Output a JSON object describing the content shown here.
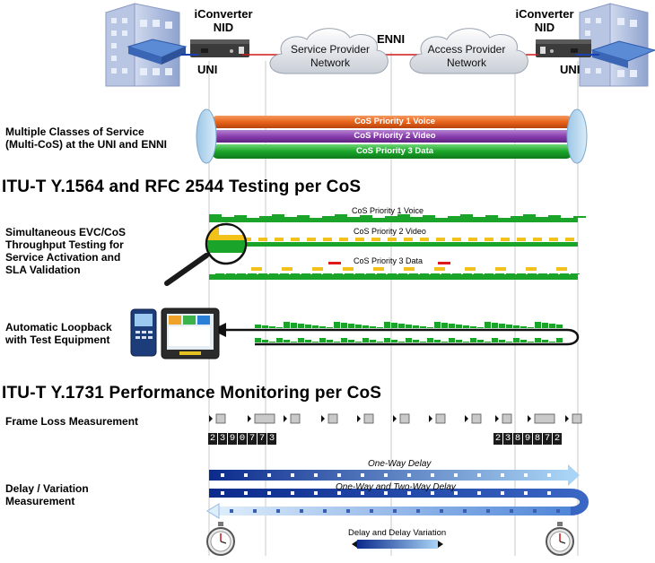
{
  "devices": {
    "left_nid": [
      "iConverter",
      "NID"
    ],
    "right_nid": [
      "iConverter",
      "NID"
    ],
    "left_uni": "UNI",
    "right_uni": "UNI",
    "enni": "ENNI"
  },
  "clouds": {
    "service_provider": [
      "Service Provider",
      "Network"
    ],
    "access_provider": [
      "Access Provider",
      "Network"
    ]
  },
  "multi_cos": {
    "label": [
      "Multiple Classes of Service",
      "(Multi-CoS) at the UNI and ENNI"
    ],
    "pipes": [
      {
        "label": "CoS Priority 1 Voice",
        "color": "#e8641c"
      },
      {
        "label": "CoS Priority 2 Video",
        "color": "#8b3fb0"
      },
      {
        "label": "CoS Priority 3 Data",
        "color": "#1aa52a"
      }
    ]
  },
  "section1": {
    "header": "ITU-T Y.1564 and RFC 2544 Testing per CoS",
    "label": [
      "Simultaneous EVC/CoS",
      "Throughput Testing for",
      "Service Activation and",
      "SLA Validation"
    ],
    "streams": [
      "CoS Priority 1 Voice",
      "CoS Priority 2 Video",
      "CoS Priority 3 Data"
    ]
  },
  "loopback": {
    "label": [
      "Automatic Loopback",
      "with Test Equipment"
    ]
  },
  "section2": {
    "header": "ITU-T Y.1731 Performance Monitoring per CoS",
    "frame_loss_label": "Frame Loss Measurement",
    "counter_left": "2390773",
    "counter_right": "2389872",
    "delay_label": [
      "Delay / Variation",
      "Measurement"
    ],
    "one_way": "One-Way Delay",
    "two_way": "One-Way and Two-Way Delay",
    "legend": "Delay and Delay Variation"
  },
  "colors": {
    "green": "#1aa52a",
    "yellow": "#f2c21a",
    "red": "#e01818",
    "blue_dark": "#0b2a8c",
    "blue_light": "#a9d4f5"
  }
}
